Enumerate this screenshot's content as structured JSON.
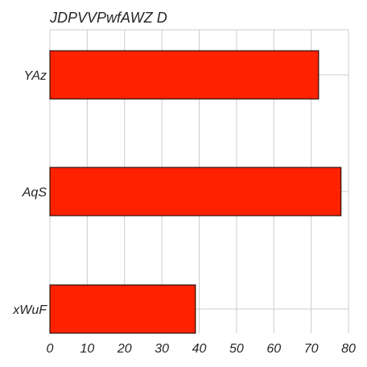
{
  "chart_data": {
    "type": "bar",
    "orientation": "horizontal",
    "title": "JDPVVPwfAWZ D",
    "xlabel": "",
    "ylabel": "",
    "categories": [
      "YAz",
      "AqS",
      "xWuF"
    ],
    "values": [
      72,
      78,
      39
    ],
    "xlim": [
      0,
      80
    ],
    "xticks": [
      0,
      10,
      20,
      30,
      40,
      50,
      60,
      70,
      80
    ],
    "grid": true,
    "bar_color": "#ff2200",
    "edge_color": "#000000",
    "grid_color": "#cccccc",
    "text_color": "#262626"
  }
}
